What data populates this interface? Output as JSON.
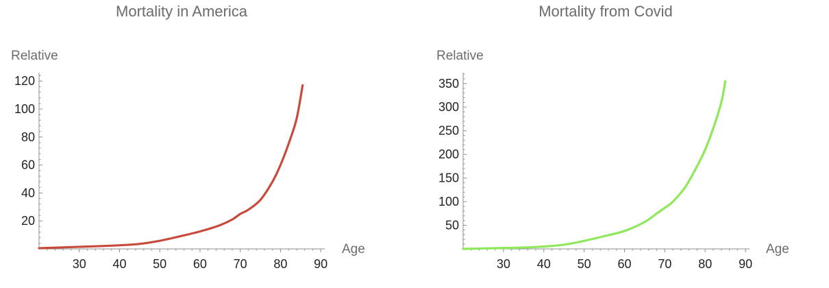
{
  "chart_data": [
    {
      "type": "line",
      "title": "Mortality in America",
      "xlabel": "Age",
      "ylabel": "Relative",
      "xlim": [
        20,
        91
      ],
      "ylim": [
        0,
        125
      ],
      "xticks": [
        30,
        40,
        50,
        60,
        70,
        80,
        90
      ],
      "yticks": [
        20,
        40,
        60,
        80,
        100,
        120
      ],
      "grid": false,
      "series": [
        {
          "color": "#c84a3c",
          "x": [
            20,
            25,
            30,
            35,
            40,
            45,
            50,
            55,
            60,
            65,
            68,
            70,
            72,
            75,
            78,
            80,
            82,
            84,
            85.5
          ],
          "y": [
            0.5,
            1,
            1.5,
            2,
            2.6,
            3.6,
            5.8,
            9,
            12.5,
            17,
            21,
            25,
            28,
            35,
            48,
            60,
            75,
            93,
            117
          ]
        }
      ]
    },
    {
      "type": "line",
      "title": "Mortality from Covid",
      "xlabel": "Age",
      "ylabel": "Relative",
      "xlim": [
        20,
        91
      ],
      "ylim": [
        0,
        370
      ],
      "xticks": [
        30,
        40,
        50,
        60,
        70,
        80,
        90
      ],
      "yticks": [
        50,
        100,
        150,
        200,
        250,
        300,
        350
      ],
      "grid": false,
      "series": [
        {
          "color": "#8ee85a",
          "x": [
            20,
            25,
            30,
            35,
            40,
            45,
            50,
            55,
            60,
            65,
            68,
            70,
            72,
            75,
            78,
            80,
            82,
            84,
            85
          ],
          "y": [
            0,
            1,
            2,
            3,
            5,
            9,
            17,
            27,
            38,
            57,
            75,
            87,
            100,
            130,
            175,
            210,
            255,
            310,
            355
          ]
        }
      ]
    }
  ]
}
